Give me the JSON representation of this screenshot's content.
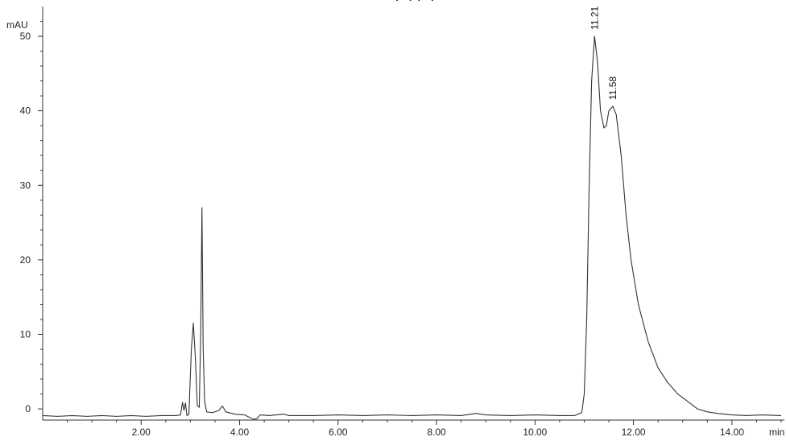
{
  "chart_data": {
    "type": "line",
    "title_fragment": "(…)  (…)",
    "ylabel": "mAU",
    "xlabel": "min",
    "xlim": [
      0.0,
      15.0
    ],
    "ylim": [
      -1.5,
      54
    ],
    "x_ticks": [
      {
        "value": 2,
        "label": "2.00"
      },
      {
        "value": 4,
        "label": "4.00"
      },
      {
        "value": 6,
        "label": "6.00"
      },
      {
        "value": 8,
        "label": "8.00"
      },
      {
        "value": 10,
        "label": "10.00"
      },
      {
        "value": 12,
        "label": "12.00"
      },
      {
        "value": 14,
        "label": "14.00"
      }
    ],
    "y_ticks": [
      {
        "value": 0,
        "label": "0"
      },
      {
        "value": 10,
        "label": "10"
      },
      {
        "value": 20,
        "label": "20"
      },
      {
        "value": 30,
        "label": "30"
      },
      {
        "value": 40,
        "label": "40"
      },
      {
        "value": 50,
        "label": "50"
      }
    ],
    "peak_labels": [
      {
        "x": 11.21,
        "y": 50.0,
        "label": "11.21"
      },
      {
        "x": 11.58,
        "y": 40.6,
        "label": "11.58"
      }
    ],
    "series": [
      {
        "points": [
          [
            0.0,
            -0.9
          ],
          [
            0.3,
            -1.0
          ],
          [
            0.6,
            -0.9
          ],
          [
            0.9,
            -1.0
          ],
          [
            1.2,
            -0.9
          ],
          [
            1.5,
            -1.0
          ],
          [
            1.8,
            -0.9
          ],
          [
            2.1,
            -1.0
          ],
          [
            2.4,
            -0.9
          ],
          [
            2.7,
            -0.9
          ],
          [
            2.8,
            -0.8
          ],
          [
            2.84,
            0.9
          ],
          [
            2.87,
            -0.2
          ],
          [
            2.9,
            0.8
          ],
          [
            2.93,
            -0.9
          ],
          [
            2.97,
            -0.7
          ],
          [
            3.02,
            8.0
          ],
          [
            3.06,
            11.5
          ],
          [
            3.1,
            7.0
          ],
          [
            3.14,
            0.5
          ],
          [
            3.18,
            0.2
          ],
          [
            3.21,
            10.0
          ],
          [
            3.235,
            27.0
          ],
          [
            3.26,
            8.0
          ],
          [
            3.29,
            1.0
          ],
          [
            3.33,
            -0.4
          ],
          [
            3.45,
            -0.5
          ],
          [
            3.58,
            -0.2
          ],
          [
            3.65,
            0.4
          ],
          [
            3.72,
            -0.4
          ],
          [
            3.9,
            -0.7
          ],
          [
            4.1,
            -0.8
          ],
          [
            4.28,
            -1.4
          ],
          [
            4.35,
            -1.3
          ],
          [
            4.42,
            -0.8
          ],
          [
            4.6,
            -0.9
          ],
          [
            4.9,
            -0.7
          ],
          [
            5.0,
            -0.9
          ],
          [
            5.5,
            -0.9
          ],
          [
            6.0,
            -0.8
          ],
          [
            6.5,
            -0.9
          ],
          [
            7.0,
            -0.8
          ],
          [
            7.5,
            -0.9
          ],
          [
            8.0,
            -0.8
          ],
          [
            8.5,
            -0.9
          ],
          [
            8.8,
            -0.6
          ],
          [
            9.0,
            -0.8
          ],
          [
            9.5,
            -0.9
          ],
          [
            10.0,
            -0.8
          ],
          [
            10.5,
            -0.9
          ],
          [
            10.8,
            -0.9
          ],
          [
            10.95,
            -0.5
          ],
          [
            11.0,
            2.0
          ],
          [
            11.05,
            12.0
          ],
          [
            11.1,
            30.0
          ],
          [
            11.15,
            44.0
          ],
          [
            11.21,
            50.0
          ],
          [
            11.27,
            46.5
          ],
          [
            11.33,
            40.0
          ],
          [
            11.4,
            37.7
          ],
          [
            11.45,
            38.0
          ],
          [
            11.5,
            40.0
          ],
          [
            11.58,
            40.6
          ],
          [
            11.65,
            39.5
          ],
          [
            11.75,
            34.0
          ],
          [
            11.85,
            26.0
          ],
          [
            11.95,
            20.0
          ],
          [
            12.1,
            14.0
          ],
          [
            12.3,
            9.0
          ],
          [
            12.5,
            5.5
          ],
          [
            12.7,
            3.5
          ],
          [
            12.9,
            2.0
          ],
          [
            13.1,
            1.0
          ],
          [
            13.3,
            0.0
          ],
          [
            13.5,
            -0.4
          ],
          [
            13.7,
            -0.6
          ],
          [
            14.0,
            -0.8
          ],
          [
            14.3,
            -0.9
          ],
          [
            14.6,
            -0.8
          ],
          [
            15.0,
            -0.9
          ]
        ]
      }
    ]
  }
}
